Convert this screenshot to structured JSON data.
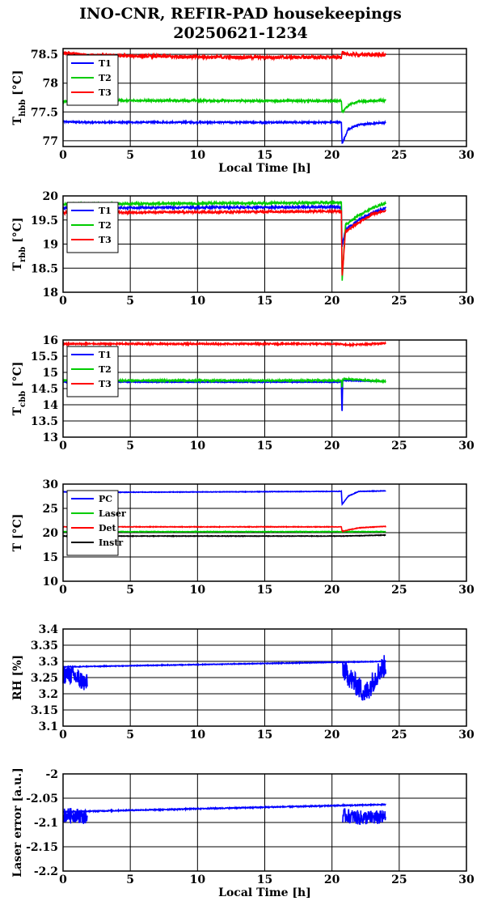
{
  "title": {
    "line1": "INO-CNR, REFIR-PAD housekeepings",
    "line2": "20250621-1234"
  },
  "chart_data": [
    {
      "type": "line",
      "id": "hbb",
      "ylabel_main": "T",
      "ylabel_sub": "hbb",
      "ylabel_unit": "[°C]",
      "xlabel": "Local Time [h]",
      "xlim": [
        0,
        30
      ],
      "ylim": [
        76.9,
        78.6
      ],
      "xticks": [
        "0",
        "5",
        "10",
        "15",
        "20",
        "25",
        "30"
      ],
      "yticks": [
        {
          "v": 77,
          "t": "77"
        },
        {
          "v": 77.5,
          "t": "77.5"
        },
        {
          "v": 78,
          "t": "78"
        },
        {
          "v": 78.5,
          "t": "78.5"
        }
      ],
      "legend_position": "top-left",
      "grid": true,
      "series": [
        {
          "name": "T1",
          "color": "#0000ff",
          "noise": 0.012,
          "x": [
            0,
            2,
            20.7,
            20.75,
            21.2,
            22,
            24
          ],
          "y": [
            77.33,
            77.32,
            77.32,
            76.95,
            77.2,
            77.28,
            77.32
          ]
        },
        {
          "name": "T2",
          "color": "#00cc00",
          "noise": 0.015,
          "x": [
            0,
            2,
            20.7,
            20.75,
            21.3,
            22,
            24
          ],
          "y": [
            77.68,
            77.7,
            77.69,
            77.5,
            77.63,
            77.68,
            77.7
          ]
        },
        {
          "name": "T3",
          "color": "#ff0000",
          "noise": 0.03,
          "x": [
            0,
            2,
            12,
            20.7,
            20.75,
            21,
            24
          ],
          "y": [
            78.52,
            78.48,
            78.45,
            78.45,
            78.55,
            78.5,
            78.49
          ]
        }
      ]
    },
    {
      "type": "line",
      "id": "rbb",
      "ylabel_main": "T",
      "ylabel_sub": "rbb",
      "ylabel_unit": "[°C]",
      "xlabel": "",
      "xlim": [
        0,
        30
      ],
      "ylim": [
        18,
        20
      ],
      "xticks": [
        "0",
        "5",
        "10",
        "15",
        "20",
        "25",
        "30"
      ],
      "yticks": [
        {
          "v": 18,
          "t": "18"
        },
        {
          "v": 18.5,
          "t": "18.5"
        },
        {
          "v": 19,
          "t": "19"
        },
        {
          "v": 19.5,
          "t": "19.5"
        },
        {
          "v": 20,
          "t": "20"
        }
      ],
      "legend_position": "top-left",
      "grid": true,
      "series": [
        {
          "name": "T1",
          "color": "#0000ff",
          "noise": 0.02,
          "x": [
            0,
            20.7,
            20.75,
            21,
            22,
            23,
            24
          ],
          "y": [
            19.75,
            19.77,
            18.95,
            19.3,
            19.5,
            19.65,
            19.75
          ]
        },
        {
          "name": "T2",
          "color": "#00cc00",
          "noise": 0.02,
          "x": [
            0,
            20.7,
            20.75,
            21,
            22,
            23,
            24
          ],
          "y": [
            19.83,
            19.86,
            18.2,
            19.4,
            19.6,
            19.75,
            19.85
          ]
        },
        {
          "name": "T3",
          "color": "#ff0000",
          "noise": 0.02,
          "x": [
            0,
            20.7,
            20.75,
            21,
            22,
            23,
            24
          ],
          "y": [
            19.65,
            19.68,
            18.3,
            19.25,
            19.45,
            19.62,
            19.7
          ]
        }
      ]
    },
    {
      "type": "line",
      "id": "cbb",
      "ylabel_main": "T",
      "ylabel_sub": "cbb",
      "ylabel_unit": "[°C]",
      "xlabel": "",
      "xlim": [
        0,
        30
      ],
      "ylim": [
        13,
        16
      ],
      "xticks": [
        "0",
        "5",
        "10",
        "15",
        "20",
        "25",
        "30"
      ],
      "yticks": [
        {
          "v": 13,
          "t": "13"
        },
        {
          "v": 13.5,
          "t": "13.5"
        },
        {
          "v": 14,
          "t": "14"
        },
        {
          "v": 14.5,
          "t": "14.5"
        },
        {
          "v": 15,
          "t": "15"
        },
        {
          "v": 15.5,
          "t": "15.5"
        },
        {
          "v": 16,
          "t": "16"
        }
      ],
      "legend_position": "top-left",
      "grid": true,
      "series": [
        {
          "name": "T1",
          "color": "#0000ff",
          "noise": 0.01,
          "x": [
            0,
            20.7,
            20.75,
            20.8,
            24
          ],
          "y": [
            14.7,
            14.7,
            13.6,
            14.75,
            14.72
          ]
        },
        {
          "name": "T2",
          "color": "#00cc00",
          "noise": 0.02,
          "x": [
            0,
            20.7,
            20.75,
            20.8,
            24
          ],
          "y": [
            14.75,
            14.75,
            14.5,
            14.8,
            14.72
          ]
        },
        {
          "name": "T3",
          "color": "#ff0000",
          "noise": 0.02,
          "x": [
            0,
            20.7,
            21,
            22,
            24
          ],
          "y": [
            15.88,
            15.88,
            15.85,
            15.86,
            15.9
          ]
        }
      ]
    },
    {
      "type": "line",
      "id": "temps",
      "ylabel_main": "T [°C]",
      "ylabel_sub": "",
      "ylabel_unit": "",
      "xlabel": "",
      "xlim": [
        0,
        30
      ],
      "ylim": [
        10,
        30
      ],
      "xticks": [
        "0",
        "5",
        "10",
        "15",
        "20",
        "25",
        "30"
      ],
      "yticks": [
        {
          "v": 10,
          "t": "10"
        },
        {
          "v": 15,
          "t": "15"
        },
        {
          "v": 20,
          "t": "20"
        },
        {
          "v": 25,
          "t": "25"
        },
        {
          "v": 30,
          "t": "30"
        }
      ],
      "legend_position": "top-left",
      "grid": true,
      "series": [
        {
          "name": "PC",
          "color": "#0000ff",
          "noise": 0.05,
          "x": [
            0,
            2,
            20.7,
            20.75,
            21.2,
            22,
            24
          ],
          "y": [
            28.4,
            28.3,
            28.5,
            25.8,
            27.5,
            28.5,
            28.6
          ]
        },
        {
          "name": "Laser",
          "color": "#00cc00",
          "noise": 0.05,
          "x": [
            0,
            20.7,
            24
          ],
          "y": [
            20.2,
            20.2,
            20.2
          ]
        },
        {
          "name": "Det",
          "color": "#ff0000",
          "noise": 0.05,
          "x": [
            0,
            20.7,
            20.75,
            22,
            24
          ],
          "y": [
            21.2,
            21.2,
            20.3,
            21.0,
            21.3
          ]
        },
        {
          "name": "Instr",
          "color": "#000000",
          "noise": 0.05,
          "x": [
            0,
            20.7,
            24
          ],
          "y": [
            19.3,
            19.3,
            19.5
          ]
        }
      ]
    },
    {
      "type": "line",
      "id": "rh",
      "ylabel_main": "RH [%]",
      "ylabel_sub": "",
      "ylabel_unit": "",
      "xlabel": "",
      "xlim": [
        0,
        30
      ],
      "ylim": [
        3.1,
        3.4
      ],
      "xticks": [
        "0",
        "5",
        "10",
        "15",
        "20",
        "25",
        "30"
      ],
      "yticks": [
        {
          "v": 3.1,
          "t": "3.1"
        },
        {
          "v": 3.15,
          "t": "3.15"
        },
        {
          "v": 3.2,
          "t": "3.2"
        },
        {
          "v": 3.25,
          "t": "3.25"
        },
        {
          "v": 3.3,
          "t": "3.3"
        },
        {
          "v": 3.35,
          "t": "3.35"
        },
        {
          "v": 3.4,
          "t": "3.4"
        }
      ],
      "legend_position": "none",
      "grid": true,
      "series": [
        {
          "name": "",
          "color": "#0000ff",
          "noise": 0.001,
          "x": [
            0,
            24
          ],
          "y": [
            3.283,
            3.3
          ]
        },
        {
          "name": "",
          "color": "#0000ff",
          "noise": 0.03,
          "x": [
            0,
            0.5,
            1,
            1.8
          ],
          "y": [
            3.26,
            3.26,
            3.25,
            3.23
          ]
        },
        {
          "name": "",
          "color": "#0000ff",
          "noise": 0.035,
          "x": [
            20.8,
            21.5,
            22.5,
            23.5,
            24
          ],
          "y": [
            3.28,
            3.24,
            3.2,
            3.27,
            3.29
          ]
        }
      ]
    },
    {
      "type": "line",
      "id": "laser",
      "ylabel_main": "Laser error [a.u.]",
      "ylabel_sub": "",
      "ylabel_unit": "",
      "xlabel": "Local Time [h]",
      "xlim": [
        0,
        30
      ],
      "ylim": [
        -2.2,
        -2.0
      ],
      "xticks": [
        "0",
        "5",
        "10",
        "15",
        "20",
        "25",
        "30"
      ],
      "yticks": [
        {
          "v": -2.2,
          "t": "-2.2"
        },
        {
          "v": -2.15,
          "t": "-2.15"
        },
        {
          "v": -2.1,
          "t": "-2.1"
        },
        {
          "v": -2.05,
          "t": "-2.05"
        },
        {
          "v": -2.0,
          "t": "-2"
        }
      ],
      "legend_position": "none",
      "grid": true,
      "series": [
        {
          "name": "",
          "color": "#0000ff",
          "noise": 0.001,
          "x": [
            0,
            24
          ],
          "y": [
            -2.078,
            -2.063
          ]
        },
        {
          "name": "",
          "color": "#0000ff",
          "noise": 0.015,
          "x": [
            0,
            1,
            1.8
          ],
          "y": [
            -2.085,
            -2.085,
            -2.09
          ]
        },
        {
          "name": "",
          "color": "#0000ff",
          "noise": 0.015,
          "x": [
            20.8,
            22,
            24
          ],
          "y": [
            -2.085,
            -2.09,
            -2.09
          ]
        }
      ]
    }
  ]
}
